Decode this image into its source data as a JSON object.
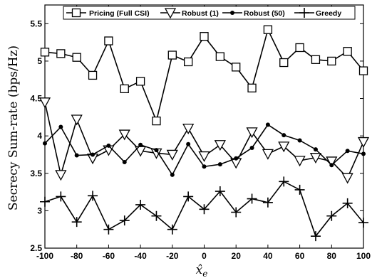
{
  "chart_data": {
    "type": "line",
    "xlabel": "x̂",
    "xlabel_subscript": "e",
    "ylabel": "Secrecy Sum-rate (bps/Hz)",
    "xlim": [
      -100,
      100
    ],
    "ylim": [
      2.5,
      5.75
    ],
    "xticks": [
      -100,
      -80,
      -60,
      -40,
      -20,
      0,
      20,
      40,
      60,
      80,
      100
    ],
    "xtick_labels": [
      "-100",
      "-80",
      "-60",
      "-40",
      "-20",
      "0",
      "20",
      "40",
      "60",
      "80",
      "100"
    ],
    "yticks": [
      2.5,
      3,
      3.5,
      4,
      4.5,
      5,
      5.5
    ],
    "ytick_labels": [
      "2.5",
      "3",
      "3.5",
      "4",
      "4.5",
      "5",
      "5.5"
    ],
    "grid": false,
    "legend_position": "top",
    "x": [
      -100,
      -90,
      -80,
      -70,
      -60,
      -50,
      -40,
      -30,
      -20,
      -10,
      0,
      10,
      20,
      30,
      40,
      50,
      60,
      70,
      80,
      90,
      100
    ],
    "series": [
      {
        "name": "Pricing (Full CSI)",
        "marker": "square",
        "values": [
          5.12,
          5.1,
          5.05,
          4.81,
          5.27,
          4.63,
          4.73,
          4.2,
          5.08,
          4.99,
          5.33,
          5.06,
          4.92,
          4.64,
          5.42,
          4.98,
          5.18,
          5.02,
          5.0,
          5.13,
          4.87
        ]
      },
      {
        "name": "Robust (1)",
        "marker": "triangle-down",
        "values": [
          4.45,
          3.48,
          4.22,
          3.7,
          3.81,
          4.02,
          3.8,
          3.77,
          3.75,
          4.1,
          3.73,
          3.88,
          3.64,
          4.05,
          3.76,
          3.86,
          3.67,
          3.71,
          3.66,
          3.44,
          3.92
        ]
      },
      {
        "name": "Robust (50)",
        "marker": "dot",
        "values": [
          3.9,
          4.12,
          3.74,
          3.75,
          3.87,
          3.65,
          3.88,
          3.81,
          3.48,
          3.89,
          3.59,
          3.62,
          3.7,
          3.84,
          4.15,
          4.01,
          3.94,
          3.82,
          3.61,
          3.8,
          3.76
        ]
      },
      {
        "name": "Greedy",
        "marker": "plus",
        "values": [
          3.12,
          3.19,
          2.85,
          3.2,
          2.75,
          2.87,
          3.08,
          2.93,
          2.75,
          3.19,
          3.02,
          3.26,
          2.98,
          3.16,
          3.11,
          3.39,
          3.28,
          2.66,
          2.93,
          3.1,
          2.84
        ]
      }
    ]
  }
}
